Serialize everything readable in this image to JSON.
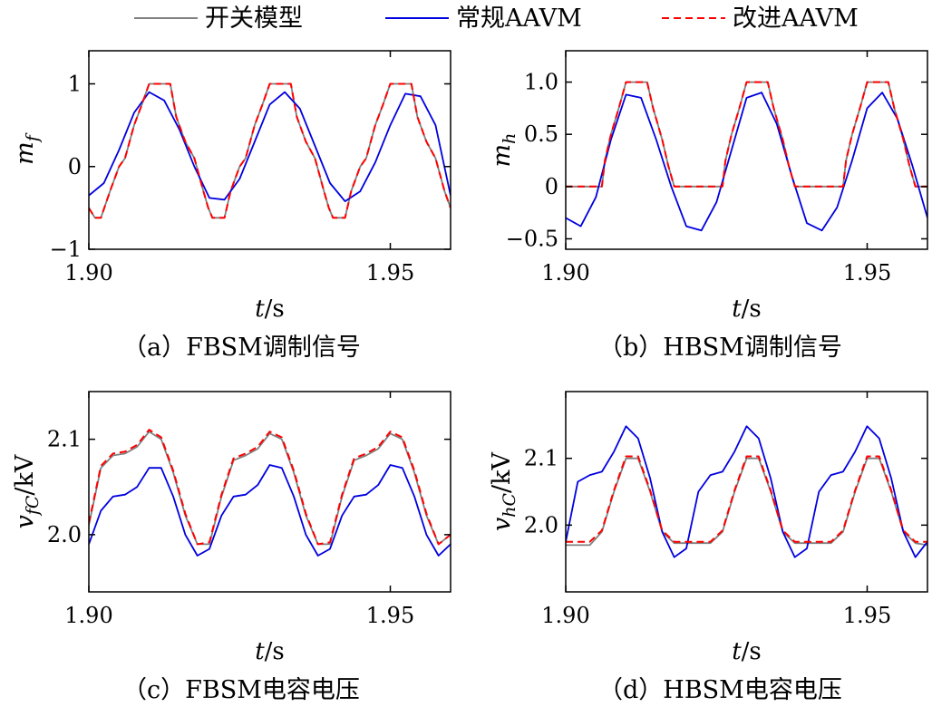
{
  "legend": {
    "items": [
      {
        "label": "开关模型",
        "color": "#808080",
        "dash": "solid"
      },
      {
        "label": "常规AAVM",
        "color": "#0000e0",
        "dash": "solid"
      },
      {
        "label": "改进AAVM",
        "color": "#ff0000",
        "dash": "dashed"
      }
    ]
  },
  "chart_data": [
    {
      "id": "a",
      "type": "line",
      "caption": "（a）FBSM调制信号",
      "ylabel_main": "m",
      "ylabel_sub": "f",
      "ylabel_tail": "",
      "xlabel_main": "t",
      "xlabel_tail": "/s",
      "xlim": [
        1.9,
        1.96
      ],
      "ylim": [
        -1.0,
        1.4
      ],
      "xticks": [
        1.9,
        1.95
      ],
      "xtick_labels": [
        "1.90",
        "1.95"
      ],
      "yticks": [
        -1,
        0,
        1
      ],
      "ytick_labels": [
        "−1",
        "0",
        "1"
      ],
      "series": [
        {
          "name": "开关模型",
          "color": "#808080",
          "dash": "solid",
          "x": [
            1.9,
            1.901,
            1.902,
            1.9035,
            1.905,
            1.906,
            1.9075,
            1.9088,
            1.91,
            1.9135,
            1.9145,
            1.916,
            1.9175,
            1.919,
            1.9198,
            1.9205,
            1.9225,
            1.9235,
            1.925,
            1.926,
            1.9275,
            1.9288,
            1.93,
            1.9335,
            1.9345,
            1.936,
            1.9375,
            1.939,
            1.9398,
            1.9405,
            1.9425,
            1.9435,
            1.945,
            1.946,
            1.9475,
            1.9488,
            1.95,
            1.9535,
            1.9545,
            1.956,
            1.9575,
            1.959,
            1.96
          ],
          "y": [
            -0.5,
            -0.62,
            -0.62,
            -0.3,
            0.0,
            0.1,
            0.5,
            0.75,
            1.0,
            1.0,
            0.6,
            0.3,
            0.1,
            -0.3,
            -0.5,
            -0.62,
            -0.62,
            -0.3,
            0.0,
            0.1,
            0.5,
            0.75,
            1.0,
            1.0,
            0.6,
            0.3,
            0.1,
            -0.3,
            -0.5,
            -0.62,
            -0.62,
            -0.3,
            0.0,
            0.1,
            0.5,
            0.75,
            1.0,
            1.0,
            0.6,
            0.3,
            0.1,
            -0.3,
            -0.5
          ]
        },
        {
          "name": "常规AAVM",
          "color": "#0000e0",
          "dash": "solid",
          "x": [
            1.9,
            1.9025,
            1.905,
            1.9075,
            1.91,
            1.9125,
            1.915,
            1.9175,
            1.92,
            1.9225,
            1.925,
            1.9275,
            1.93,
            1.9325,
            1.935,
            1.9375,
            1.94,
            1.9425,
            1.945,
            1.9475,
            1.95,
            1.9525,
            1.955,
            1.9575,
            1.96
          ],
          "y": [
            -0.35,
            -0.2,
            0.2,
            0.65,
            0.9,
            0.8,
            0.45,
            0.0,
            -0.38,
            -0.4,
            -0.15,
            0.3,
            0.75,
            0.9,
            0.7,
            0.25,
            -0.2,
            -0.42,
            -0.3,
            0.05,
            0.5,
            0.88,
            0.85,
            0.5,
            -0.35
          ]
        },
        {
          "name": "改进AAVM",
          "color": "#ff0000",
          "dash": "dashed",
          "x": [
            1.9,
            1.901,
            1.902,
            1.9035,
            1.905,
            1.906,
            1.9075,
            1.9088,
            1.91,
            1.9135,
            1.9145,
            1.916,
            1.9175,
            1.919,
            1.9198,
            1.9205,
            1.9225,
            1.9235,
            1.925,
            1.926,
            1.9275,
            1.9288,
            1.93,
            1.9335,
            1.9345,
            1.936,
            1.9375,
            1.939,
            1.9398,
            1.9405,
            1.9425,
            1.9435,
            1.945,
            1.946,
            1.9475,
            1.9488,
            1.95,
            1.9535,
            1.9545,
            1.956,
            1.9575,
            1.959,
            1.96
          ],
          "y": [
            -0.5,
            -0.62,
            -0.62,
            -0.3,
            0.0,
            0.1,
            0.5,
            0.75,
            1.0,
            1.0,
            0.6,
            0.3,
            0.1,
            -0.3,
            -0.5,
            -0.62,
            -0.62,
            -0.3,
            0.0,
            0.1,
            0.5,
            0.75,
            1.0,
            1.0,
            0.6,
            0.3,
            0.1,
            -0.3,
            -0.5,
            -0.62,
            -0.62,
            -0.3,
            0.0,
            0.1,
            0.5,
            0.75,
            1.0,
            1.0,
            0.6,
            0.3,
            0.1,
            -0.3,
            -0.5
          ]
        }
      ]
    },
    {
      "id": "b",
      "type": "line",
      "caption": "（b）HBSM调制信号",
      "ylabel_main": "m",
      "ylabel_sub": "h",
      "ylabel_tail": "",
      "xlabel_main": "t",
      "xlabel_tail": "/s",
      "xlim": [
        1.9,
        1.96
      ],
      "ylim": [
        -0.6,
        1.3
      ],
      "xticks": [
        1.9,
        1.95
      ],
      "xtick_labels": [
        "1.90",
        "1.95"
      ],
      "yticks": [
        -0.5,
        0,
        0.5,
        1.0
      ],
      "ytick_labels": [
        "−0.5",
        "0",
        "0.5",
        "1.0"
      ],
      "series": [
        {
          "name": "开关模型",
          "color": "#808080",
          "dash": "solid",
          "x": [
            1.9,
            1.906,
            1.9065,
            1.9075,
            1.9088,
            1.91,
            1.9135,
            1.9145,
            1.916,
            1.917,
            1.9175,
            1.918,
            1.926,
            1.9265,
            1.9275,
            1.9288,
            1.93,
            1.9335,
            1.9345,
            1.936,
            1.937,
            1.9375,
            1.938,
            1.946,
            1.9465,
            1.9475,
            1.9488,
            1.95,
            1.9535,
            1.9545,
            1.956,
            1.957,
            1.9575,
            1.958,
            1.96
          ],
          "y": [
            0.0,
            0.0,
            0.25,
            0.5,
            0.75,
            1.0,
            1.0,
            0.75,
            0.45,
            0.2,
            0.1,
            0.0,
            0.0,
            0.25,
            0.5,
            0.75,
            1.0,
            1.0,
            0.75,
            0.45,
            0.2,
            0.1,
            0.0,
            0.0,
            0.25,
            0.5,
            0.75,
            1.0,
            1.0,
            0.75,
            0.45,
            0.2,
            0.1,
            0.0,
            0.0
          ]
        },
        {
          "name": "常规AAVM",
          "color": "#0000e0",
          "dash": "solid",
          "x": [
            1.9,
            1.9025,
            1.905,
            1.9075,
            1.91,
            1.9125,
            1.915,
            1.9175,
            1.92,
            1.9225,
            1.925,
            1.9275,
            1.93,
            1.9325,
            1.935,
            1.9375,
            1.94,
            1.9425,
            1.945,
            1.9475,
            1.95,
            1.9525,
            1.955,
            1.9575,
            1.96
          ],
          "y": [
            -0.3,
            -0.38,
            -0.1,
            0.45,
            0.88,
            0.85,
            0.45,
            0.0,
            -0.38,
            -0.42,
            -0.15,
            0.35,
            0.85,
            0.9,
            0.6,
            0.1,
            -0.35,
            -0.42,
            -0.2,
            0.25,
            0.75,
            0.9,
            0.65,
            0.2,
            -0.3
          ]
        },
        {
          "name": "改进AAVM",
          "color": "#ff0000",
          "dash": "dashed",
          "x": [
            1.9,
            1.906,
            1.9065,
            1.9075,
            1.9088,
            1.91,
            1.9135,
            1.9145,
            1.916,
            1.917,
            1.9175,
            1.918,
            1.926,
            1.9265,
            1.9275,
            1.9288,
            1.93,
            1.9335,
            1.9345,
            1.936,
            1.937,
            1.9375,
            1.938,
            1.946,
            1.9465,
            1.9475,
            1.9488,
            1.95,
            1.9535,
            1.9545,
            1.956,
            1.957,
            1.9575,
            1.958,
            1.96
          ],
          "y": [
            0.0,
            0.0,
            0.25,
            0.5,
            0.75,
            1.0,
            1.0,
            0.75,
            0.45,
            0.2,
            0.1,
            0.0,
            0.0,
            0.25,
            0.5,
            0.75,
            1.0,
            1.0,
            0.75,
            0.45,
            0.2,
            0.1,
            0.0,
            0.0,
            0.25,
            0.5,
            0.75,
            1.0,
            1.0,
            0.75,
            0.45,
            0.2,
            0.1,
            0.0,
            0.0
          ]
        }
      ]
    },
    {
      "id": "c",
      "type": "line",
      "caption": "（c）FBSM电容电压",
      "ylabel_main": "v",
      "ylabel_sub": "fC",
      "ylabel_tail": "/kV",
      "xlabel_main": "t",
      "xlabel_tail": "/s",
      "xlim": [
        1.9,
        1.96
      ],
      "ylim": [
        1.94,
        2.15
      ],
      "xticks": [
        1.9,
        1.95
      ],
      "xtick_labels": [
        "1.90",
        "1.95"
      ],
      "yticks": [
        2.0,
        2.1
      ],
      "ytick_labels": [
        "2.0",
        "2.1"
      ],
      "series": [
        {
          "name": "开关模型",
          "color": "#808080",
          "dash": "solid",
          "x": [
            1.9,
            1.902,
            1.904,
            1.906,
            1.908,
            1.91,
            1.912,
            1.914,
            1.916,
            1.918,
            1.92,
            1.922,
            1.924,
            1.926,
            1.928,
            1.93,
            1.932,
            1.934,
            1.936,
            1.938,
            1.94,
            1.942,
            1.944,
            1.946,
            1.948,
            1.95,
            1.952,
            1.954,
            1.956,
            1.958,
            1.96
          ],
          "y": [
            2.01,
            2.07,
            2.083,
            2.085,
            2.092,
            2.108,
            2.1,
            2.065,
            2.02,
            1.99,
            1.99,
            2.04,
            2.078,
            2.083,
            2.09,
            2.106,
            2.1,
            2.065,
            2.02,
            1.99,
            1.99,
            2.04,
            2.078,
            2.083,
            2.09,
            2.106,
            2.1,
            2.065,
            2.02,
            1.99,
            2.0
          ]
        },
        {
          "name": "常规AAVM",
          "color": "#0000e0",
          "dash": "solid",
          "x": [
            1.9,
            1.902,
            1.904,
            1.906,
            1.908,
            1.91,
            1.912,
            1.914,
            1.916,
            1.918,
            1.92,
            1.922,
            1.924,
            1.926,
            1.928,
            1.93,
            1.932,
            1.934,
            1.936,
            1.938,
            1.94,
            1.942,
            1.944,
            1.946,
            1.948,
            1.95,
            1.952,
            1.954,
            1.956,
            1.958,
            1.96
          ],
          "y": [
            1.99,
            2.025,
            2.04,
            2.042,
            2.05,
            2.07,
            2.07,
            2.04,
            2.0,
            1.978,
            1.985,
            2.02,
            2.04,
            2.042,
            2.052,
            2.073,
            2.07,
            2.04,
            2.0,
            1.978,
            1.985,
            2.02,
            2.04,
            2.042,
            2.052,
            2.073,
            2.07,
            2.04,
            2.0,
            1.978,
            1.99
          ]
        },
        {
          "name": "改进AAVM",
          "color": "#ff0000",
          "dash": "dashed",
          "x": [
            1.9,
            1.902,
            1.904,
            1.906,
            1.908,
            1.91,
            1.912,
            1.914,
            1.916,
            1.918,
            1.92,
            1.922,
            1.924,
            1.926,
            1.928,
            1.93,
            1.932,
            1.934,
            1.936,
            1.938,
            1.94,
            1.942,
            1.944,
            1.946,
            1.948,
            1.95,
            1.952,
            1.954,
            1.956,
            1.958,
            1.96
          ],
          "y": [
            2.012,
            2.072,
            2.085,
            2.087,
            2.094,
            2.11,
            2.102,
            2.067,
            2.022,
            1.99,
            1.992,
            2.042,
            2.08,
            2.085,
            2.092,
            2.108,
            2.102,
            2.067,
            2.022,
            1.99,
            1.992,
            2.042,
            2.08,
            2.085,
            2.092,
            2.108,
            2.102,
            2.067,
            2.022,
            1.99,
            2.0
          ]
        }
      ]
    },
    {
      "id": "d",
      "type": "line",
      "caption": "（d）HBSM电容电压",
      "ylabel_main": "v",
      "ylabel_sub": "hC",
      "ylabel_tail": "/kV",
      "xlabel_main": "t",
      "xlabel_tail": "/s",
      "xlim": [
        1.9,
        1.96
      ],
      "ylim": [
        1.9,
        2.2
      ],
      "xticks": [
        1.9,
        1.95
      ],
      "xtick_labels": [
        "1.90",
        "1.95"
      ],
      "yticks": [
        2.0,
        2.1
      ],
      "ytick_labels": [
        "2.0",
        "2.1"
      ],
      "series": [
        {
          "name": "开关模型",
          "color": "#808080",
          "dash": "solid",
          "x": [
            1.9,
            1.904,
            1.906,
            1.908,
            1.91,
            1.912,
            1.914,
            1.916,
            1.918,
            1.922,
            1.924,
            1.926,
            1.928,
            1.93,
            1.932,
            1.934,
            1.936,
            1.938,
            1.942,
            1.944,
            1.946,
            1.948,
            1.95,
            1.952,
            1.954,
            1.956,
            1.958,
            1.96
          ],
          "y": [
            1.97,
            1.97,
            1.99,
            2.05,
            2.1,
            2.1,
            2.05,
            1.99,
            1.973,
            1.973,
            1.973,
            1.99,
            2.05,
            2.1,
            2.1,
            2.05,
            1.99,
            1.973,
            1.973,
            1.973,
            1.99,
            2.05,
            2.1,
            2.1,
            2.05,
            1.99,
            1.973,
            1.97
          ]
        },
        {
          "name": "常规AAVM",
          "color": "#0000e0",
          "dash": "solid",
          "x": [
            1.9,
            1.902,
            1.904,
            1.906,
            1.908,
            1.91,
            1.912,
            1.914,
            1.916,
            1.918,
            1.92,
            1.922,
            1.924,
            1.926,
            1.928,
            1.93,
            1.932,
            1.934,
            1.936,
            1.938,
            1.94,
            1.942,
            1.944,
            1.946,
            1.948,
            1.95,
            1.952,
            1.954,
            1.956,
            1.958,
            1.96
          ],
          "y": [
            1.975,
            2.065,
            2.075,
            2.08,
            2.11,
            2.148,
            2.13,
            2.07,
            1.99,
            1.952,
            1.965,
            2.05,
            2.075,
            2.08,
            2.11,
            2.148,
            2.13,
            2.07,
            1.99,
            1.952,
            1.965,
            2.05,
            2.075,
            2.08,
            2.11,
            2.148,
            2.13,
            2.07,
            1.99,
            1.952,
            1.975
          ]
        },
        {
          "name": "改进AAVM",
          "color": "#ff0000",
          "dash": "dashed",
          "x": [
            1.9,
            1.904,
            1.906,
            1.908,
            1.91,
            1.912,
            1.914,
            1.916,
            1.918,
            1.922,
            1.924,
            1.926,
            1.928,
            1.93,
            1.932,
            1.934,
            1.936,
            1.938,
            1.942,
            1.944,
            1.946,
            1.948,
            1.95,
            1.952,
            1.954,
            1.956,
            1.958,
            1.96
          ],
          "y": [
            1.975,
            1.975,
            1.992,
            2.052,
            2.103,
            2.103,
            2.052,
            1.992,
            1.975,
            1.975,
            1.975,
            1.992,
            2.052,
            2.103,
            2.103,
            2.052,
            1.992,
            1.975,
            1.975,
            1.975,
            1.992,
            2.052,
            2.103,
            2.103,
            2.052,
            1.992,
            1.975,
            1.975
          ]
        }
      ]
    }
  ]
}
